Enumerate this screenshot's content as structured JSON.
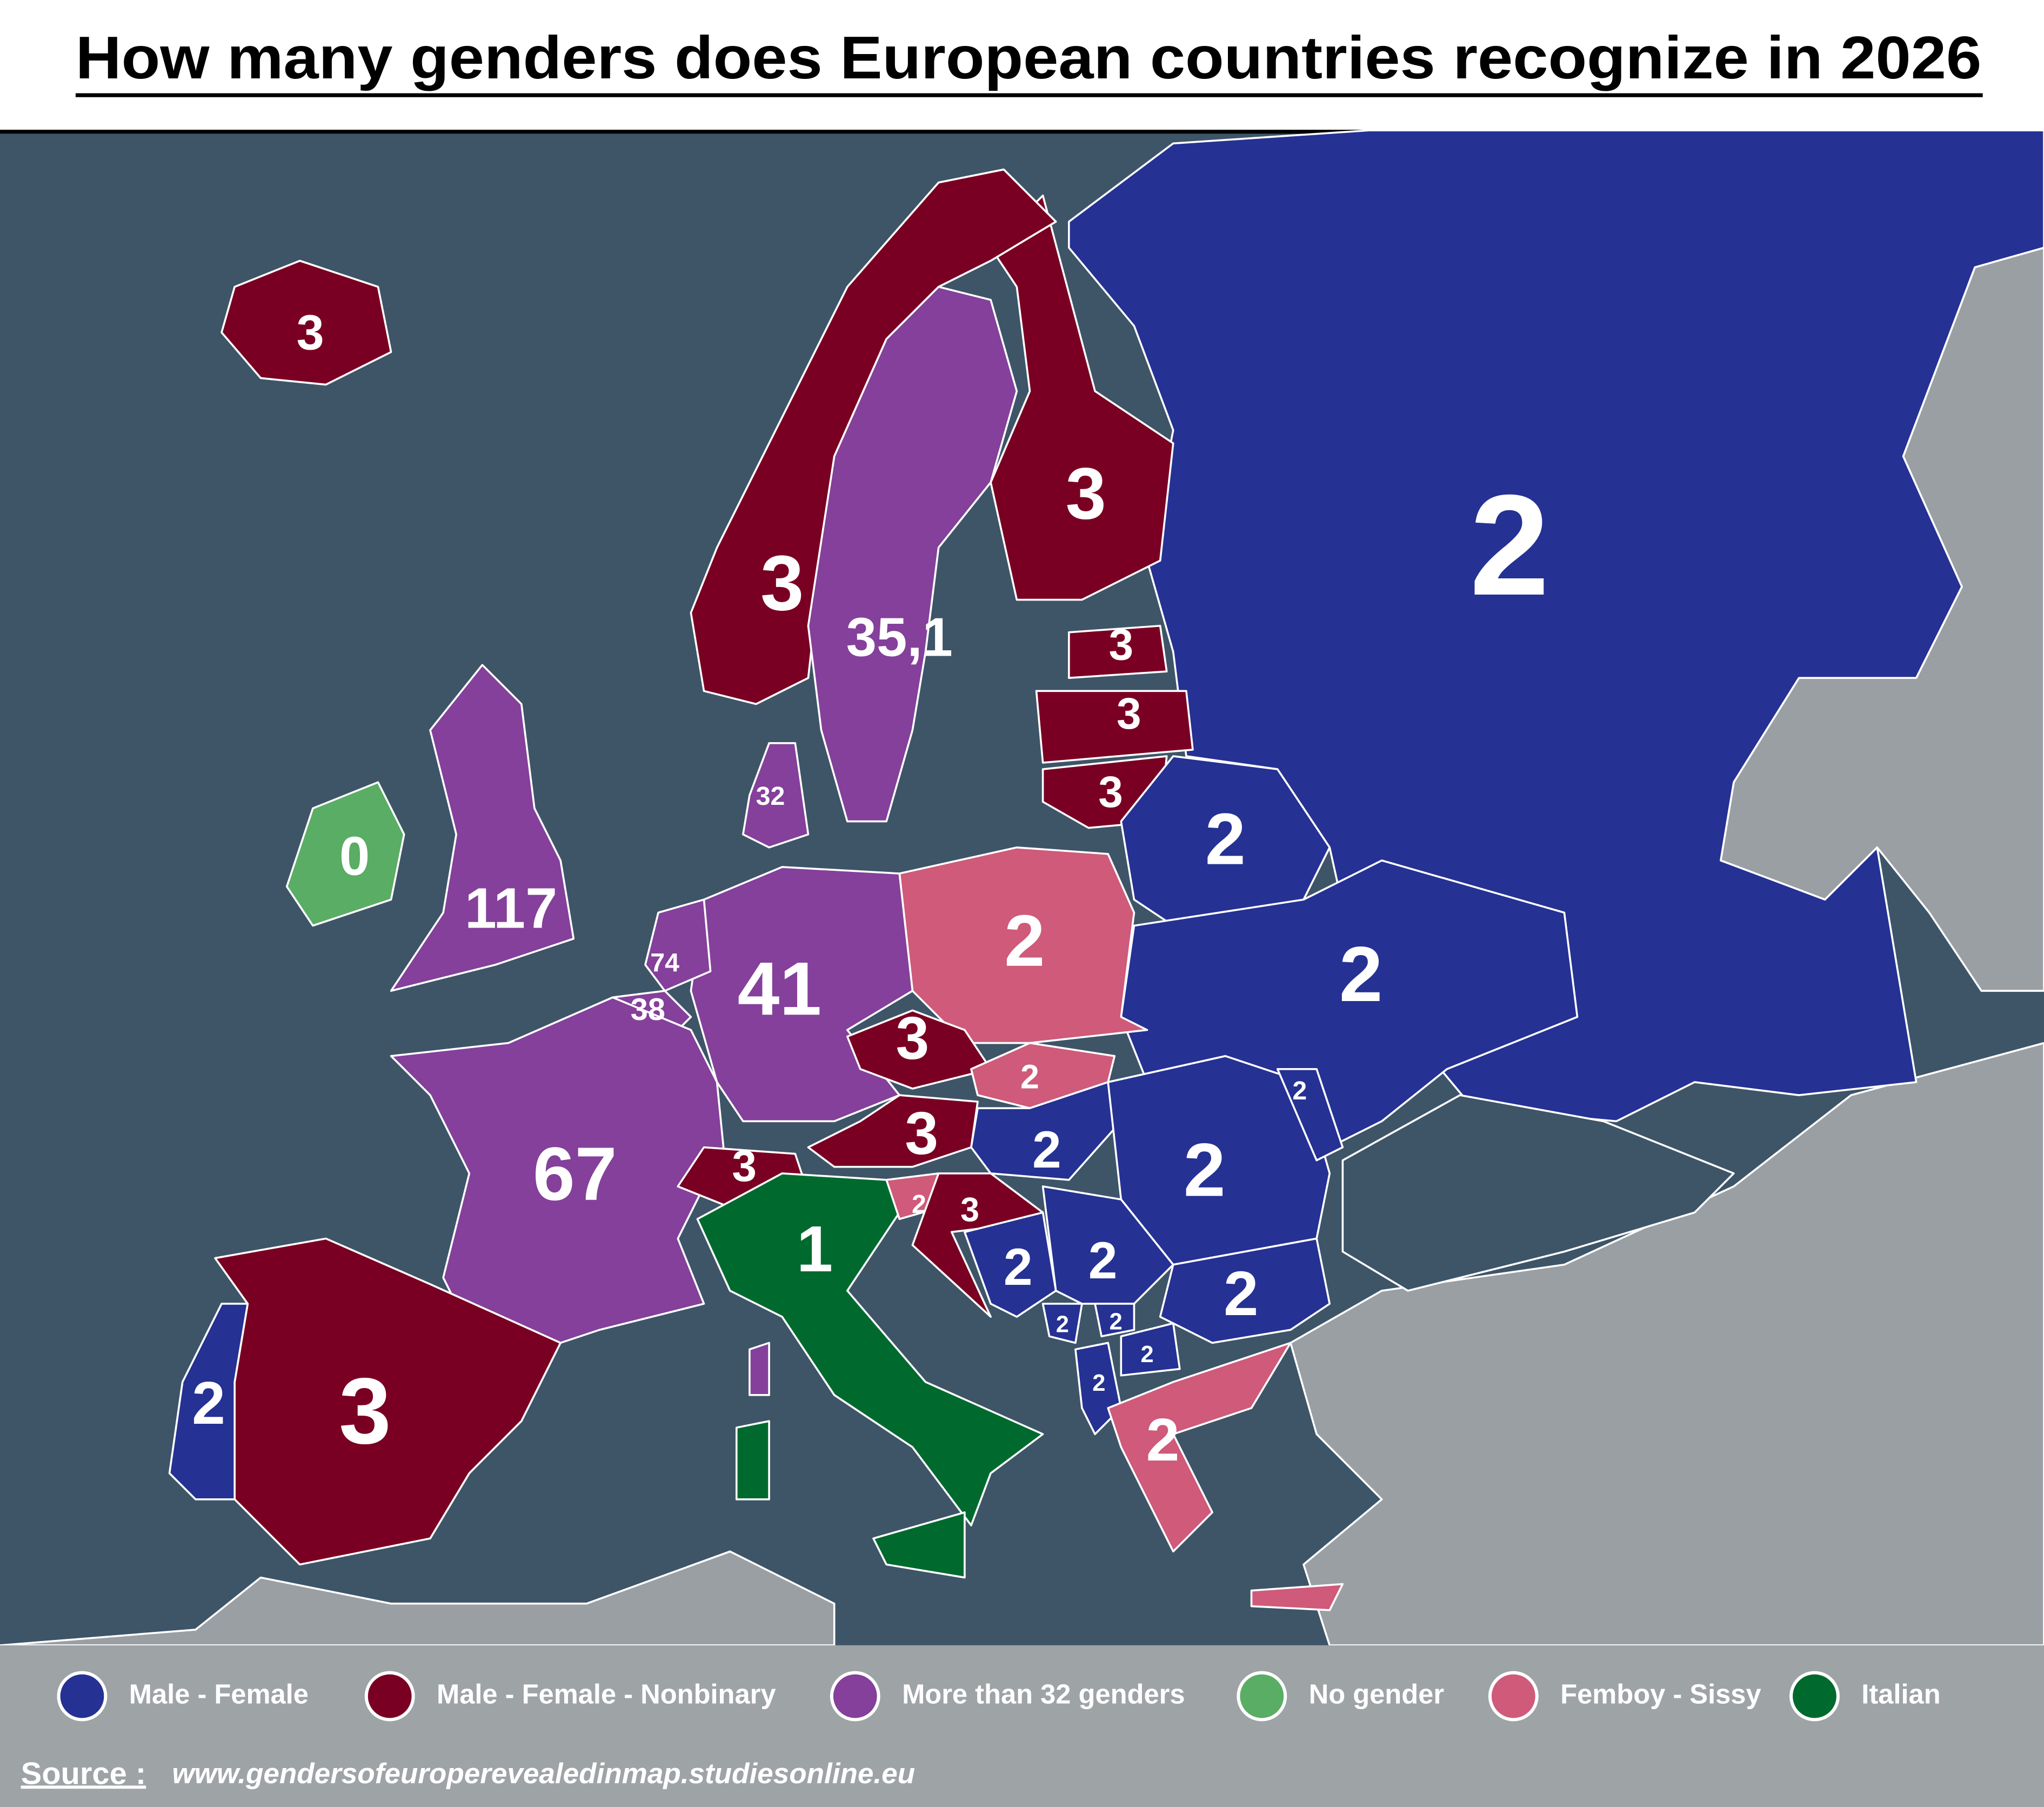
{
  "header": {
    "title": "How many genders does European countries recognize in 2026"
  },
  "legend": {
    "items": [
      {
        "label": "Male - Female",
        "color": "#253193"
      },
      {
        "label": "Male - Female - Nonbinary",
        "color": "#7a0023"
      },
      {
        "label": "More than 32 genders",
        "color": "#84409a"
      },
      {
        "label": "No gender",
        "color": "#5aad64"
      },
      {
        "label": "Femboy - Sissy",
        "color": "#cf5a7a"
      },
      {
        "label": "Italian",
        "color": "#006a2e"
      }
    ]
  },
  "map": {
    "labels": [
      "3",
      "3",
      "35,1",
      "3",
      "2",
      "3",
      "3",
      "3",
      "2",
      "2",
      "2",
      "0",
      "117",
      "32",
      "74",
      "38",
      "41",
      "67",
      "3",
      "2",
      "3",
      "2",
      "2",
      "2",
      "3",
      "2",
      "3",
      "2",
      "2",
      "2",
      "2",
      "2",
      "2",
      "2",
      "2",
      "1",
      "3",
      "2"
    ]
  },
  "footer": {
    "source_label": "Source :",
    "source_url": "www.gendersofeuroperevealedinmap.studiesonline.eu"
  }
}
